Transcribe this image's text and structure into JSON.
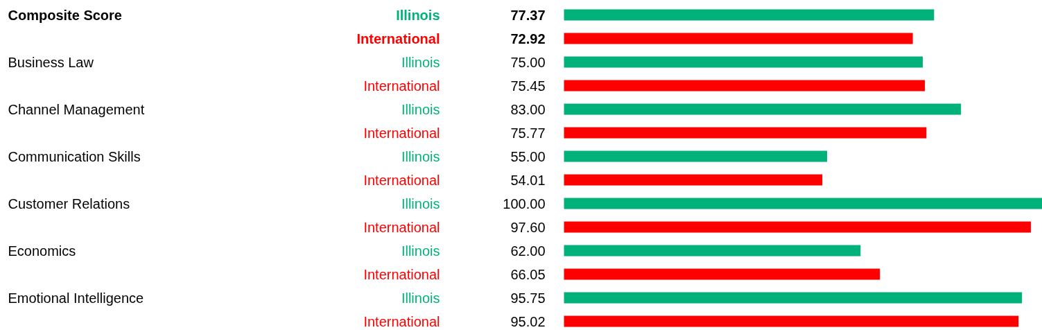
{
  "chart_data": {
    "type": "bar",
    "orientation": "horizontal",
    "categories": [
      "Composite Score",
      "Business Law",
      "Channel Management",
      "Communication Skills",
      "Customer Relations",
      "Economics",
      "Emotional Intelligence"
    ],
    "series": [
      {
        "name": "Illinois",
        "color": "#00b27a",
        "values": [
          77.37,
          75.0,
          83.0,
          55.0,
          100.0,
          62.0,
          95.75
        ],
        "value_labels": [
          "77.37",
          "75.00",
          "83.00",
          "55.00",
          "100.00",
          "62.00",
          "95.75"
        ]
      },
      {
        "name": "International",
        "color": "#ff0000",
        "values": [
          72.92,
          75.45,
          75.77,
          54.01,
          97.6,
          66.05,
          95.02
        ],
        "value_labels": [
          "72.92",
          "75.45",
          "75.77",
          "54.01",
          "97.60",
          "66.05",
          "95.02"
        ]
      }
    ],
    "xlim": [
      0,
      100
    ],
    "tick_labels": false,
    "grid": false
  }
}
